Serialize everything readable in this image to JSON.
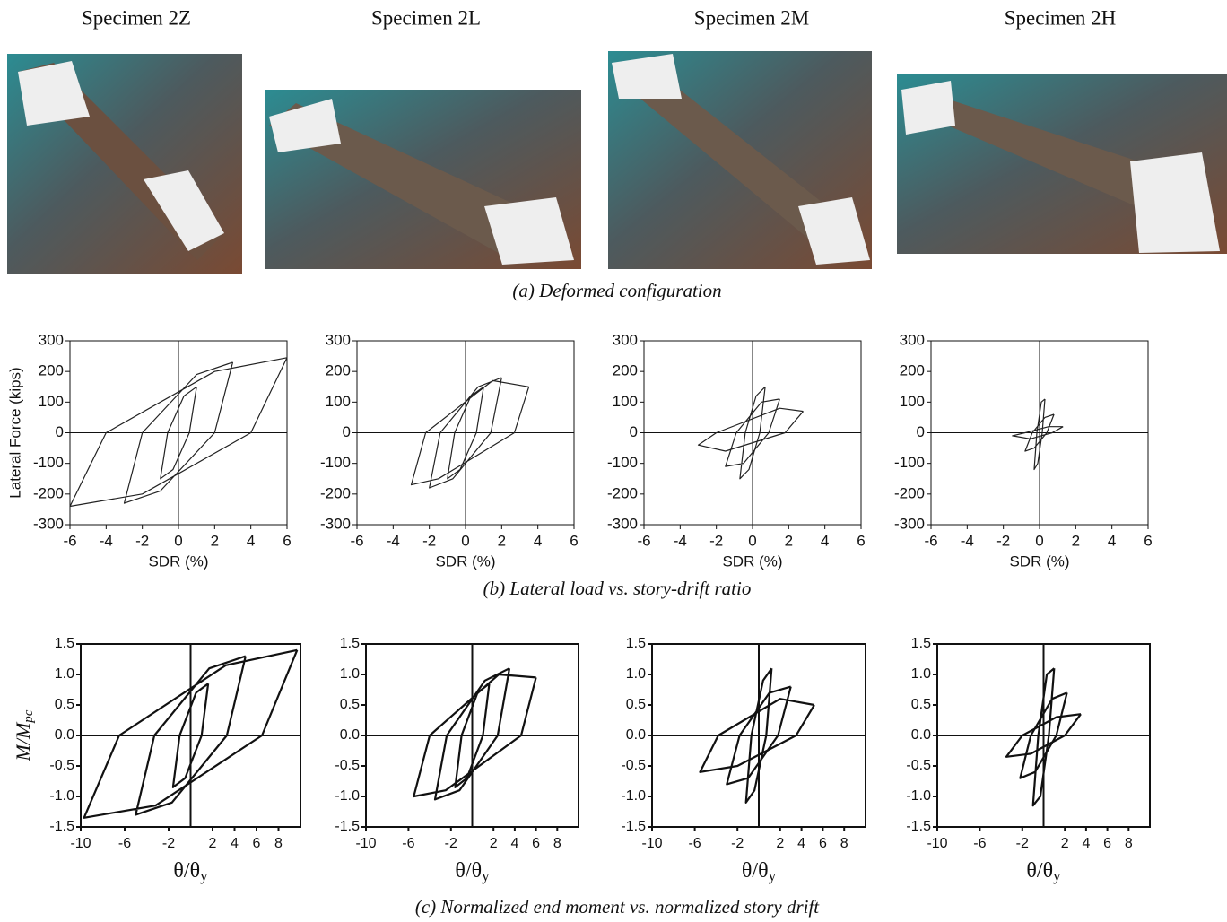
{
  "header": {
    "specimens": [
      "Specimen 2Z",
      "Specimen 2L",
      "Specimen 2M",
      "Specimen 2H"
    ]
  },
  "captions": [
    "(a)  Deformed configuration",
    "(b)  Lateral load vs. story-drift ratio",
    "(c)  Normalized end moment vs. normalized story drift"
  ],
  "chart_data": [
    {
      "type": "line",
      "color": "#222222",
      "xlabel": "SDR (%)",
      "ylabel": "Lateral Force (kips)",
      "xlim": [
        -6,
        6
      ],
      "ylim": [
        -300,
        300
      ],
      "xticks": [
        -6,
        -4,
        -2,
        0,
        2,
        4,
        6
      ],
      "yticks": [
        300,
        200,
        100,
        0,
        -100,
        -200,
        -300
      ],
      "x": [
        1,
        0.6,
        -0.3,
        -1,
        -0.6,
        0.3,
        1,
        null,
        3,
        2,
        -1,
        -3,
        -2,
        1,
        3,
        null,
        6,
        4,
        -2,
        -6,
        -4,
        2,
        6
      ],
      "values": [
        150,
        0,
        -120,
        -150,
        0,
        120,
        150,
        null,
        230,
        0,
        -190,
        -230,
        0,
        190,
        230,
        null,
        245,
        0,
        -200,
        -240,
        0,
        200,
        245
      ]
    },
    {
      "type": "line",
      "color": "#222222",
      "xlabel": "SDR (%)",
      "xlim": [
        -6,
        6
      ],
      "ylim": [
        -300,
        300
      ],
      "xticks": [
        -6,
        -4,
        -2,
        0,
        2,
        4,
        6
      ],
      "yticks": [
        300,
        200,
        100,
        0,
        -100,
        -200,
        -300
      ],
      "x": [
        1,
        0.6,
        -0.3,
        -1,
        -0.6,
        0.3,
        1,
        null,
        2,
        1.4,
        -0.7,
        -2,
        -1.4,
        0.7,
        2,
        null,
        3.5,
        2.7,
        -1.5,
        -3,
        -2.2,
        1.5,
        3.5
      ],
      "values": [
        150,
        0,
        -120,
        -150,
        0,
        120,
        150,
        null,
        180,
        0,
        -150,
        -180,
        0,
        150,
        180,
        null,
        150,
        0,
        -150,
        -170,
        0,
        170,
        150
      ]
    },
    {
      "type": "line",
      "color": "#222222",
      "xlabel": "SDR (%)",
      "xlim": [
        -6,
        6
      ],
      "ylim": [
        -300,
        300
      ],
      "xticks": [
        -6,
        -4,
        -2,
        0,
        2,
        4,
        6
      ],
      "yticks": [
        300,
        200,
        100,
        0,
        -100,
        -200,
        -300
      ],
      "x": [
        0.7,
        0.4,
        -0.2,
        -0.7,
        -0.4,
        0.2,
        0.7,
        null,
        1.5,
        0.9,
        -0.5,
        -1.5,
        -0.9,
        0.5,
        1.5,
        null,
        2.8,
        1.8,
        -1.5,
        -3,
        -2,
        1.5,
        2.8
      ],
      "values": [
        150,
        0,
        -120,
        -150,
        0,
        120,
        150,
        null,
        110,
        0,
        -100,
        -110,
        0,
        100,
        110,
        null,
        70,
        0,
        -60,
        -40,
        0,
        80,
        70
      ]
    },
    {
      "type": "line",
      "color": "#222222",
      "xlabel": "SDR (%)",
      "xlim": [
        -6,
        6
      ],
      "ylim": [
        -300,
        300
      ],
      "xticks": [
        -6,
        -4,
        -2,
        0,
        2,
        4,
        6
      ],
      "yticks": [
        300,
        200,
        100,
        0,
        -100,
        -200,
        -300
      ],
      "x": [
        0.3,
        0.15,
        -0.1,
        -0.3,
        -0.15,
        0.1,
        0.3,
        null,
        0.8,
        0.4,
        -0.3,
        -0.8,
        -0.4,
        0.3,
        0.8,
        null,
        1.3,
        0.7,
        -0.5,
        -1.5,
        -0.8,
        0.5,
        1.3
      ],
      "values": [
        110,
        0,
        -100,
        -120,
        0,
        100,
        110,
        null,
        60,
        0,
        -50,
        -60,
        0,
        50,
        60,
        null,
        20,
        0,
        -20,
        -10,
        0,
        20,
        20
      ]
    },
    {
      "type": "line",
      "color": "#111111",
      "xlabel": "θ/θ",
      "xlabel_sub": "y",
      "ylabel": "M/M",
      "ylabel_sub": "pc",
      "xlim": [
        -10,
        10
      ],
      "ylim": [
        -1.5,
        1.5
      ],
      "xticks": [
        -10,
        -6,
        -2,
        2,
        4,
        6,
        8
      ],
      "yticks": [
        1.5,
        {
          "value": 1,
          "label": "1.0"
        },
        0.5,
        {
          "value": 0,
          "label": "0.0"
        },
        -0.5,
        {
          "value": -1,
          "label": "-1.0"
        },
        -1.5
      ],
      "x": [
        1.6,
        1,
        -0.5,
        -1.6,
        -1,
        0.5,
        1.6,
        null,
        5,
        3.3,
        -1.7,
        -5,
        -3.3,
        1.7,
        5,
        null,
        9.7,
        6.5,
        -3.2,
        -9.7,
        -6.5,
        3.2,
        9.7
      ],
      "values": [
        0.85,
        0,
        -0.7,
        -0.85,
        0,
        0.7,
        0.85,
        null,
        1.3,
        0,
        -1.1,
        -1.3,
        0,
        1.1,
        1.3,
        null,
        1.4,
        0,
        -1.15,
        -1.35,
        0,
        1.15,
        1.4
      ]
    },
    {
      "type": "line",
      "color": "#111111",
      "xlabel": "θ/θ",
      "xlabel_sub": "y",
      "xlim": [
        -10,
        10
      ],
      "ylim": [
        -1.5,
        1.5
      ],
      "xticks": [
        -10,
        -6,
        -2,
        2,
        4,
        6,
        8
      ],
      "yticks": [
        1.5,
        {
          "value": 1,
          "label": "1.0"
        },
        0.5,
        {
          "value": 0,
          "label": "0.0"
        },
        -0.5,
        {
          "value": -1,
          "label": "-1.0"
        },
        -1.5
      ],
      "x": [
        1.6,
        1,
        -0.5,
        -1.6,
        -1,
        0.5,
        1.6,
        null,
        3.5,
        2.4,
        -1.2,
        -3.5,
        -2.4,
        1.2,
        3.5,
        null,
        6,
        4.6,
        -2.5,
        -5.5,
        -4,
        2.5,
        6
      ],
      "values": [
        0.85,
        0,
        -0.7,
        -0.85,
        0,
        0.7,
        0.85,
        null,
        1.1,
        0,
        -0.9,
        -1.05,
        0,
        0.9,
        1.1,
        null,
        0.95,
        0,
        -0.9,
        -1,
        0,
        1,
        0.95
      ]
    },
    {
      "type": "line",
      "color": "#111111",
      "xlabel": "θ/θ",
      "xlabel_sub": "y",
      "xlim": [
        -10,
        10
      ],
      "ylim": [
        -1.5,
        1.5
      ],
      "xticks": [
        -10,
        -6,
        -2,
        2,
        4,
        6,
        8
      ],
      "yticks": [
        1.5,
        {
          "value": 1,
          "label": "1.0"
        },
        0.5,
        {
          "value": 0,
          "label": "0.0"
        },
        -0.5,
        {
          "value": -1,
          "label": "-1.0"
        },
        -1.5
      ],
      "x": [
        1.2,
        0.7,
        -0.4,
        -1.2,
        -0.7,
        0.4,
        1.2,
        null,
        3,
        1.8,
        -1,
        -3,
        -1.8,
        1,
        3,
        null,
        5.2,
        3.5,
        -2,
        -5.5,
        -3.8,
        2,
        5.2
      ],
      "values": [
        1.1,
        0,
        -0.9,
        -1.1,
        0,
        0.9,
        1.1,
        null,
        0.8,
        0,
        -0.7,
        -0.8,
        0,
        0.7,
        0.8,
        null,
        0.5,
        0,
        -0.5,
        -0.6,
        0,
        0.6,
        0.5
      ]
    },
    {
      "type": "line",
      "color": "#111111",
      "xlabel": "θ/θ",
      "xlabel_sub": "y",
      "xlim": [
        -10,
        10
      ],
      "ylim": [
        -1.5,
        1.5
      ],
      "xticks": [
        -10,
        -6,
        -2,
        2,
        4,
        6,
        8
      ],
      "yticks": [
        1.5,
        {
          "value": 1,
          "label": "1.0"
        },
        0.5,
        {
          "value": 0,
          "label": "0.0"
        },
        -0.5,
        {
          "value": -1,
          "label": "-1.0"
        },
        -1.5
      ],
      "x": [
        1,
        0.5,
        -0.3,
        -1,
        -0.5,
        0.3,
        1,
        null,
        2.2,
        1.2,
        -0.8,
        -2.2,
        -1.2,
        0.8,
        2.2,
        null,
        3.5,
        2,
        -1.2,
        -3.5,
        -2,
        1.2,
        3.5
      ],
      "values": [
        1.1,
        0,
        -1,
        -1.15,
        0,
        1,
        1.1,
        null,
        0.7,
        0,
        -0.6,
        -0.7,
        0,
        0.6,
        0.7,
        null,
        0.35,
        0,
        -0.3,
        -0.35,
        0,
        0.3,
        0.35
      ]
    }
  ]
}
